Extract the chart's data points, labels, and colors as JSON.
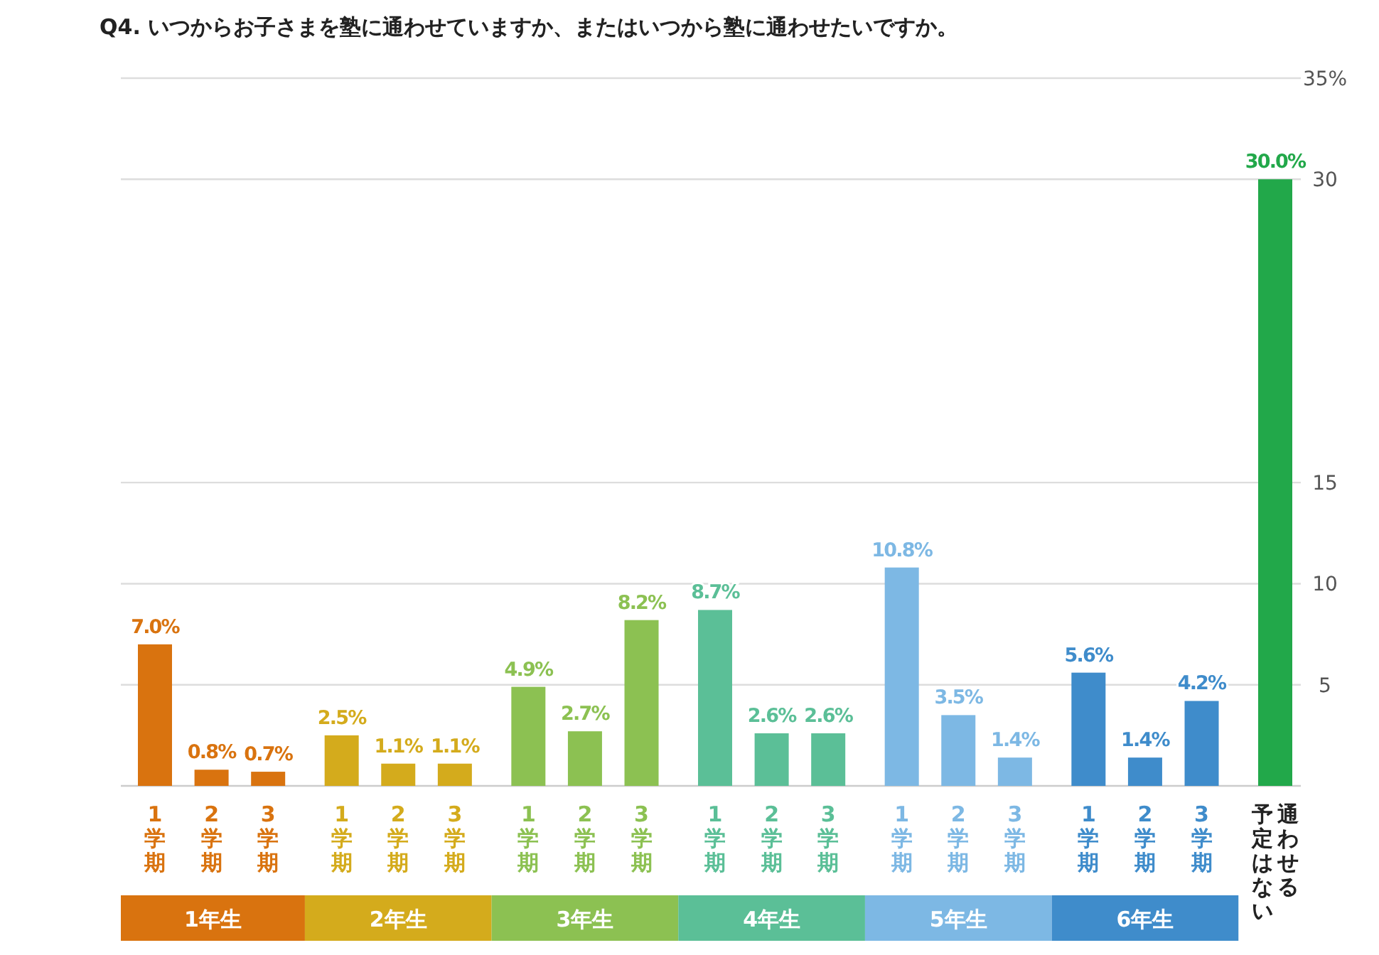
{
  "chart_data": {
    "type": "bar",
    "title": "Q4. いつからお子さまを塾に通わせていますか、またはいつから塾に通わせたいですか。",
    "categories": [
      "1学期",
      "2学期",
      "3学期",
      "1学期",
      "2学期",
      "3学期",
      "1学期",
      "2学期",
      "3学期",
      "1学期",
      "2学期",
      "3学期",
      "1学期",
      "2学期",
      "3学期",
      "1学期",
      "2学期",
      "3学期",
      "通わせる予定はない"
    ],
    "series": [
      {
        "name": "1年生",
        "color": "#d9730f",
        "values": [
          7.0,
          0.8,
          0.7,
          null,
          null,
          null,
          null,
          null,
          null,
          null,
          null,
          null,
          null,
          null,
          null,
          null,
          null,
          null,
          null
        ],
        "value_labels": [
          "7.0%",
          "0.8%",
          "0.7%",
          null,
          null,
          null,
          null,
          null,
          null,
          null,
          null,
          null,
          null,
          null,
          null,
          null,
          null,
          null,
          null
        ]
      },
      {
        "name": "2年生",
        "color": "#d4ab1c",
        "values": [
          null,
          null,
          null,
          2.5,
          1.1,
          1.1,
          null,
          null,
          null,
          null,
          null,
          null,
          null,
          null,
          null,
          null,
          null,
          null,
          null
        ],
        "value_labels": [
          null,
          null,
          null,
          "2.5%",
          "1.1%",
          "1.1%",
          null,
          null,
          null,
          null,
          null,
          null,
          null,
          null,
          null,
          null,
          null,
          null,
          null
        ]
      },
      {
        "name": "3年生",
        "color": "#8cc152",
        "values": [
          null,
          null,
          null,
          null,
          null,
          null,
          4.9,
          2.7,
          8.2,
          null,
          null,
          null,
          null,
          null,
          null,
          null,
          null,
          null,
          null
        ],
        "value_labels": [
          null,
          null,
          null,
          null,
          null,
          null,
          "4.9%",
          "2.7%",
          "8.2%",
          null,
          null,
          null,
          null,
          null,
          null,
          null,
          null,
          null,
          null
        ]
      },
      {
        "name": "4年生",
        "color": "#5bbf97",
        "values": [
          null,
          null,
          null,
          null,
          null,
          null,
          null,
          null,
          null,
          8.7,
          2.6,
          2.6,
          null,
          null,
          null,
          null,
          null,
          null,
          null
        ],
        "value_labels": [
          null,
          null,
          null,
          null,
          null,
          null,
          null,
          null,
          null,
          "8.7%",
          "2.6%",
          "2.6%",
          null,
          null,
          null,
          null,
          null,
          null,
          null
        ]
      },
      {
        "name": "5年生",
        "color": "#7db8e4",
        "values": [
          null,
          null,
          null,
          null,
          null,
          null,
          null,
          null,
          null,
          null,
          null,
          null,
          10.8,
          3.5,
          1.4,
          null,
          null,
          null,
          null
        ],
        "value_labels": [
          null,
          null,
          null,
          null,
          null,
          null,
          null,
          null,
          null,
          null,
          null,
          null,
          "10.8%",
          "3.5%",
          "1.4%",
          null,
          null,
          null,
          null
        ]
      },
      {
        "name": "6年生",
        "color": "#3f8ccb",
        "values": [
          null,
          null,
          null,
          null,
          null,
          null,
          null,
          null,
          null,
          null,
          null,
          null,
          null,
          null,
          null,
          5.6,
          1.4,
          4.2,
          null
        ],
        "value_labels": [
          null,
          null,
          null,
          null,
          null,
          null,
          null,
          null,
          null,
          null,
          null,
          null,
          null,
          null,
          null,
          "5.6%",
          "1.4%",
          "4.2%",
          null
        ]
      },
      {
        "color": "#22a84a",
        "values": [
          null,
          null,
          null,
          null,
          null,
          null,
          null,
          null,
          null,
          null,
          null,
          null,
          null,
          null,
          null,
          null,
          null,
          null,
          30.0
        ],
        "value_labels": [
          null,
          null,
          null,
          null,
          null,
          null,
          null,
          null,
          null,
          null,
          null,
          null,
          null,
          null,
          null,
          null,
          null,
          null,
          "30.0%"
        ]
      }
    ],
    "ylim": [
      0,
      35
    ],
    "yticks": [
      5,
      10,
      15,
      30,
      {
        "value": 35,
        "label": "35%"
      }
    ],
    "grid": "y"
  }
}
